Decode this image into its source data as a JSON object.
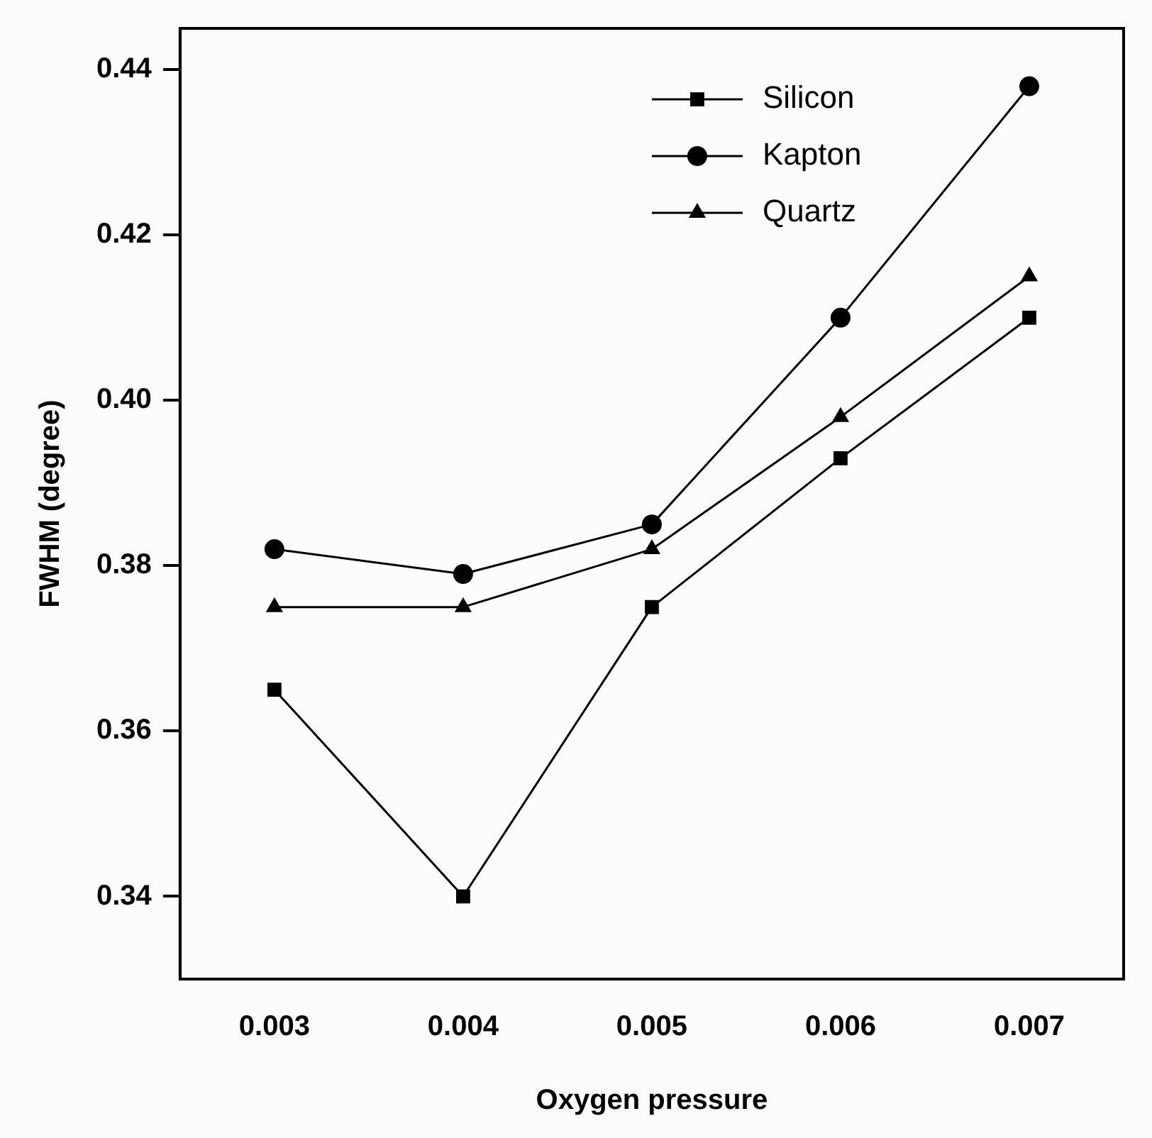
{
  "chart_data": {
    "type": "line",
    "xlabel": "Oxygen pressure",
    "ylabel": "FWHM (degree)",
    "x": [
      0.003,
      0.004,
      0.005,
      0.006,
      0.007
    ],
    "series": [
      {
        "name": "Silicon",
        "color": "#000000",
        "marker": "square",
        "values": [
          0.365,
          0.34,
          0.375,
          0.393,
          0.41
        ]
      },
      {
        "name": "Kapton",
        "color": "#000000",
        "marker": "circle",
        "values": [
          0.382,
          0.379,
          0.385,
          0.41,
          0.438
        ]
      },
      {
        "name": "Quartz",
        "color": "#000000",
        "marker": "triangle",
        "values": [
          0.375,
          0.375,
          0.382,
          0.398,
          0.415
        ]
      }
    ],
    "xlim": [
      0.0025,
      0.0075
    ],
    "xticks": [
      0.003,
      0.004,
      0.005,
      0.006,
      0.007
    ],
    "ylim": [
      0.33,
      0.445
    ],
    "yticks": [
      0.34,
      0.36,
      0.38,
      {
        "value": 0.4,
        "label": "0.40"
      },
      0.42,
      0.44
    ],
    "grid": false,
    "legend": "top right",
    "line_style": "solid"
  }
}
